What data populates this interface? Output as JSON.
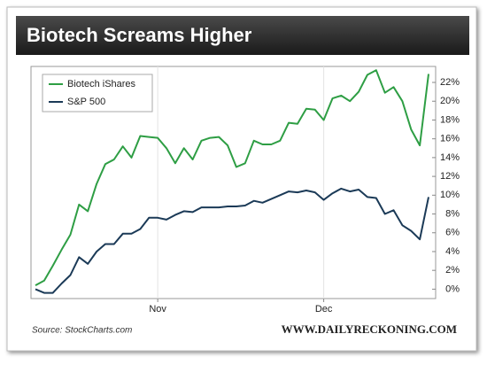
{
  "chart_data": {
    "type": "line",
    "title": "Biotech Screams Higher",
    "source": "Source: StockCharts.com",
    "credit": "WWW.DAILYRECKONING.COM",
    "categories": [
      null,
      null,
      null,
      null,
      null,
      null,
      null,
      null,
      null,
      null,
      null,
      null,
      null,
      null,
      "Nov",
      null,
      null,
      null,
      null,
      null,
      null,
      null,
      null,
      null,
      null,
      null,
      null,
      null,
      null,
      null,
      null,
      null,
      null,
      "Dec",
      null,
      null,
      null,
      null,
      null,
      null,
      null,
      null,
      null,
      null,
      null,
      null
    ],
    "series": [
      {
        "name": "Biotech iShares",
        "color": "#2e9e44",
        "values": [
          0.4,
          0.9,
          2.5,
          4.2,
          5.8,
          9.0,
          8.3,
          11.2,
          13.3,
          13.8,
          15.2,
          14.0,
          16.3,
          16.2,
          16.1,
          15.0,
          13.4,
          15.0,
          13.8,
          15.8,
          16.1,
          16.2,
          15.3,
          13.0,
          13.4,
          15.8,
          15.4,
          15.4,
          15.8,
          17.7,
          17.6,
          19.2,
          19.1,
          18.0,
          20.3,
          20.6,
          20.0,
          21.0,
          22.8,
          23.3,
          20.9,
          21.5,
          20.0,
          17.0,
          15.3,
          22.9
        ]
      },
      {
        "name": "S&P 500",
        "color": "#1b3a57",
        "values": [
          0.0,
          -0.4,
          -0.4,
          0.6,
          1.5,
          3.4,
          2.7,
          4.0,
          4.8,
          4.8,
          5.9,
          5.9,
          6.4,
          7.6,
          7.6,
          7.4,
          7.9,
          8.3,
          8.2,
          8.7,
          8.7,
          8.7,
          8.8,
          8.8,
          8.9,
          9.4,
          9.2,
          9.6,
          10.0,
          10.4,
          10.3,
          10.5,
          10.3,
          9.5,
          10.2,
          10.7,
          10.4,
          10.6,
          9.8,
          9.7,
          8.0,
          8.4,
          6.8,
          6.2,
          5.3,
          9.8
        ]
      }
    ],
    "ylim": [
      -1,
      23.7
    ],
    "yticks": [
      {
        "value": 0,
        "label": "0%"
      },
      {
        "value": 2,
        "label": "2%"
      },
      {
        "value": 4,
        "label": "4%"
      },
      {
        "value": 6,
        "label": "6%"
      },
      {
        "value": 8,
        "label": "8%"
      },
      {
        "value": 10,
        "label": "10%"
      },
      {
        "value": 12,
        "label": "12%"
      },
      {
        "value": 14,
        "label": "14%"
      },
      {
        "value": 16,
        "label": "16%"
      },
      {
        "value": 18,
        "label": "18%"
      },
      {
        "value": 20,
        "label": "20%"
      },
      {
        "value": 22,
        "label": "22%"
      }
    ],
    "grid": false,
    "legend": "top-left"
  }
}
